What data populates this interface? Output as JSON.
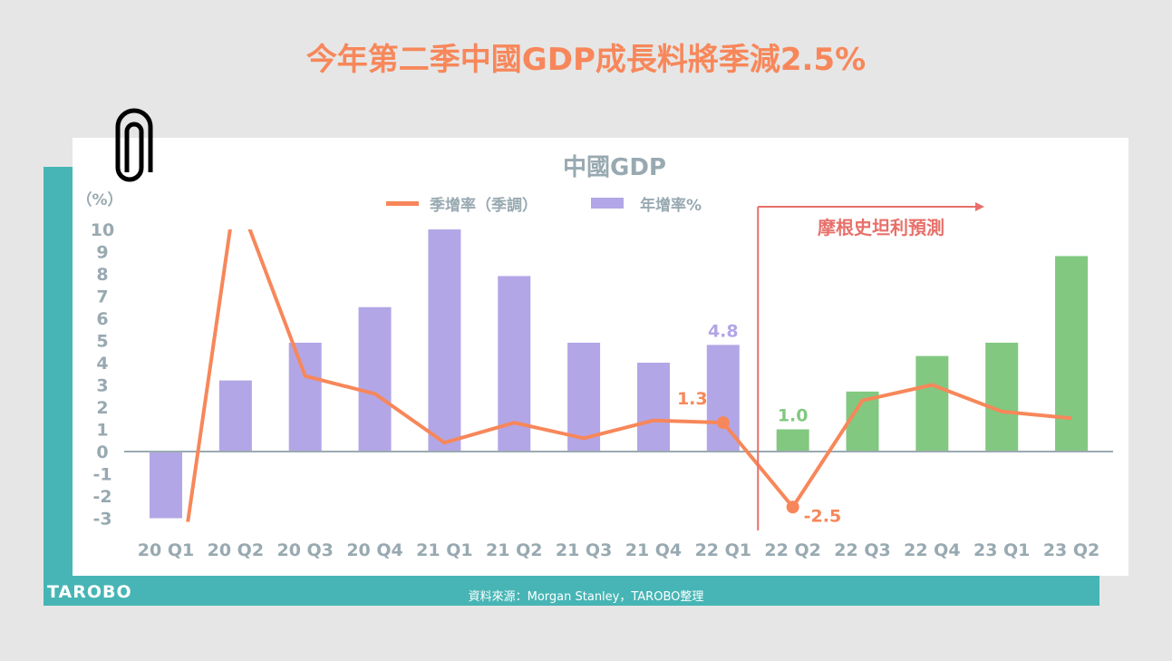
{
  "title": "今年第二季中國GDP成長料將季減2.5%",
  "footer": {
    "logo": "TAROBO",
    "source": "資料來源：Morgan Stanley，TAROBO整理"
  },
  "chart_data": {
    "type": "bar",
    "title": "中國GDP",
    "ylabel": "（%）",
    "ylim": [
      -3,
      10
    ],
    "yticks": [
      10,
      9,
      8,
      7,
      6,
      5,
      4,
      3,
      2,
      1,
      0,
      -1,
      -2,
      -3
    ],
    "categories": [
      "20 Q1",
      "20 Q2",
      "20 Q3",
      "20 Q4",
      "21 Q1",
      "21 Q2",
      "21 Q3",
      "21 Q4",
      "22 Q1",
      "22 Q2",
      "22 Q3",
      "22 Q4",
      "23 Q1",
      "23 Q2"
    ],
    "legend": [
      "季增率（季調）",
      "年增率%"
    ],
    "series": [
      {
        "name": "年增率%",
        "type": "bar",
        "values": [
          -3.0,
          3.2,
          4.9,
          6.5,
          10,
          7.9,
          4.9,
          4.0,
          4.8,
          1.0,
          2.7,
          4.3,
          4.9,
          8.8
        ],
        "colors": {
          "actual": "#b3a6e6",
          "forecast": "#82c881"
        }
      },
      {
        "name": "季增率（季調）",
        "type": "line",
        "values": [
          -10,
          11.7,
          3.4,
          2.6,
          0.4,
          1.3,
          0.6,
          1.4,
          1.3,
          -2.5,
          2.3,
          3.0,
          1.8,
          1.5
        ],
        "color": "#f7875a"
      }
    ],
    "data_labels": [
      {
        "category": "22 Q1",
        "series": "年增率%",
        "text": "4.8",
        "color": "#b3a6e6"
      },
      {
        "category": "22 Q1",
        "series": "季增率（季調）",
        "text": "1.3",
        "color": "#f7875a"
      },
      {
        "category": "22 Q2",
        "series": "年增率%",
        "text": "1.0",
        "color": "#82c881"
      },
      {
        "category": "22 Q2",
        "series": "季增率（季調）",
        "text": "-2.5",
        "color": "#f7875a"
      }
    ],
    "forecast": {
      "label": "摩根史坦利預測",
      "start_category": "22 Q2",
      "color": "#e8706a"
    },
    "axis_color": "#9aaab2"
  }
}
